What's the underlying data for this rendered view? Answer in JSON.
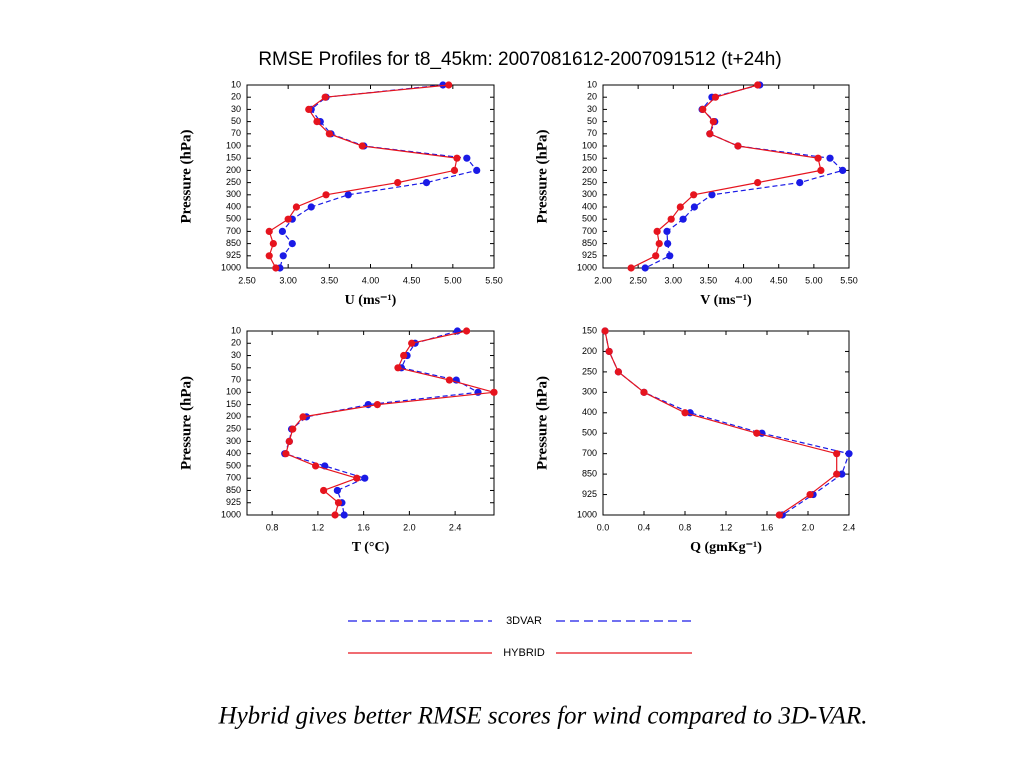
{
  "title": "RMSE Profiles  for t8_45km: 2007081612-2007091512 (t+24h)",
  "caption": "Hybrid gives better RMSE scores for wind compared to 3D-VAR.",
  "chart_data": [
    {
      "type": "line",
      "x_label": "U (ms⁻¹)",
      "y_label": "Pressure (hPa)",
      "categories": [
        "10",
        "20",
        "30",
        "50",
        "70",
        "100",
        "150",
        "200",
        "250",
        "300",
        "400",
        "500",
        "700",
        "850",
        "925",
        "1000"
      ],
      "xlim": [
        2.5,
        5.5
      ],
      "xticks": [
        {
          "value": 2.5,
          "label": "2.50"
        },
        {
          "value": 3,
          "label": "3.00"
        },
        {
          "value": 3.5,
          "label": "3.50"
        },
        {
          "value": 4,
          "label": "4.00"
        },
        {
          "value": 4.5,
          "label": "4.50"
        },
        {
          "value": 5,
          "label": "5.00"
        },
        {
          "value": 5.5,
          "label": "5.50"
        }
      ],
      "series": [
        {
          "name": "3DVAR",
          "color": "#1a1ae6",
          "dashed": true,
          "values": [
            4.88,
            3.46,
            3.28,
            3.39,
            3.52,
            3.92,
            5.17,
            5.29,
            4.68,
            3.73,
            3.28,
            3.05,
            2.93,
            3.05,
            2.94,
            2.9
          ]
        },
        {
          "name": "HYBRID",
          "color": "#e6141e",
          "dashed": false,
          "values": [
            4.95,
            3.45,
            3.25,
            3.35,
            3.5,
            3.9,
            5.05,
            5.02,
            4.33,
            3.46,
            3.1,
            3.0,
            2.77,
            2.82,
            2.77,
            2.85
          ]
        }
      ]
    },
    {
      "type": "line",
      "x_label": "V (ms⁻¹)",
      "y_label": "Pressure (hPa)",
      "categories": [
        "10",
        "20",
        "30",
        "50",
        "70",
        "100",
        "150",
        "200",
        "250",
        "300",
        "400",
        "500",
        "700",
        "850",
        "925",
        "1000"
      ],
      "xlim": [
        2,
        5.5
      ],
      "xticks": [
        {
          "value": 2,
          "label": "2.00"
        },
        {
          "value": 2.5,
          "label": "2.50"
        },
        {
          "value": 3,
          "label": "3.00"
        },
        {
          "value": 3.5,
          "label": "3.50"
        },
        {
          "value": 4,
          "label": "4.00"
        },
        {
          "value": 4.5,
          "label": "4.50"
        },
        {
          "value": 5,
          "label": "5.00"
        },
        {
          "value": 5.5,
          "label": "5.50"
        }
      ],
      "series": [
        {
          "color": "#1a1ae6",
          "dashed": true,
          "values": [
            4.23,
            3.55,
            3.41,
            3.59,
            3.52,
            3.92,
            5.23,
            5.41,
            4.8,
            3.55,
            3.3,
            3.14,
            2.91,
            2.92,
            2.95,
            2.6
          ]
        },
        {
          "color": "#e6141e",
          "dashed": false,
          "values": [
            4.2,
            3.6,
            3.42,
            3.57,
            3.52,
            3.92,
            5.06,
            5.1,
            4.2,
            3.29,
            3.1,
            2.97,
            2.77,
            2.8,
            2.75,
            2.4
          ]
        }
      ]
    },
    {
      "type": "line",
      "x_label": "T (°C)",
      "y_label": "Pressure (hPa)",
      "categories": [
        "10",
        "20",
        "30",
        "50",
        "70",
        "100",
        "150",
        "200",
        "250",
        "300",
        "400",
        "500",
        "700",
        "850",
        "925",
        "1000"
      ],
      "xlim": [
        0.58,
        2.74
      ],
      "xticks": [
        0.8,
        1.2,
        1.6,
        {
          "value": 2,
          "label": "2.0"
        },
        2.4
      ],
      "series": [
        {
          "color": "#1a1ae6",
          "dashed": true,
          "values": [
            2.42,
            2.05,
            1.98,
            1.93,
            2.41,
            2.6,
            1.64,
            1.1,
            0.97,
            0.95,
            0.91,
            1.26,
            1.61,
            1.37,
            1.41,
            1.43
          ]
        },
        {
          "color": "#e6141e",
          "dashed": false,
          "values": [
            2.5,
            2.02,
            1.95,
            1.9,
            2.35,
            2.74,
            1.72,
            1.07,
            0.98,
            0.95,
            0.92,
            1.18,
            1.54,
            1.25,
            1.38,
            1.35
          ]
        }
      ]
    },
    {
      "type": "line",
      "x_label": "Q (gmKg⁻¹)",
      "y_label": "Pressure (hPa)",
      "categories": [
        "150",
        "200",
        "250",
        "300",
        "400",
        "500",
        "700",
        "850",
        "925",
        "1000"
      ],
      "xlim": [
        0,
        2.4
      ],
      "xticks": [
        {
          "value": 0,
          "label": "0.0"
        },
        0.4,
        0.8,
        1.2,
        1.6,
        {
          "value": 2,
          "label": "2.0"
        },
        2.4
      ],
      "series": [
        {
          "color": "#1a1ae6",
          "dashed": true,
          "values": [
            0.02,
            0.06,
            0.15,
            0.4,
            0.85,
            1.55,
            2.4,
            2.33,
            2.05,
            1.75
          ]
        },
        {
          "color": "#e6141e",
          "dashed": false,
          "values": [
            0.02,
            0.06,
            0.15,
            0.4,
            0.8,
            1.5,
            2.28,
            2.28,
            2.02,
            1.72
          ]
        }
      ]
    }
  ]
}
